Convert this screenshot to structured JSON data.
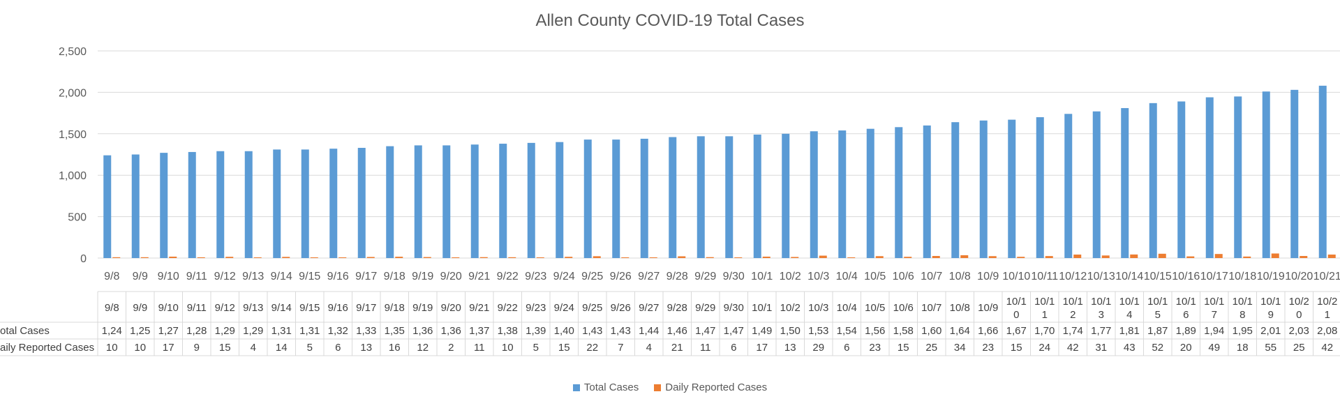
{
  "chart_data": {
    "type": "bar",
    "title": "Allen County COVID-19 Total Cases",
    "xlabel": "",
    "ylabel": "",
    "ylim": [
      0,
      2500
    ],
    "yticks": [
      "0",
      "500",
      "1,000",
      "1,500",
      "2,000",
      "2,500"
    ],
    "grid": true,
    "legend_position": "bottom",
    "data_table": true,
    "categories": [
      "9/8",
      "9/9",
      "9/10",
      "9/11",
      "9/12",
      "9/13",
      "9/14",
      "9/15",
      "9/16",
      "9/17",
      "9/18",
      "9/19",
      "9/20",
      "9/21",
      "9/22",
      "9/23",
      "9/24",
      "9/25",
      "9/26",
      "9/27",
      "9/28",
      "9/29",
      "9/30",
      "10/1",
      "10/2",
      "10/3",
      "10/4",
      "10/5",
      "10/6",
      "10/7",
      "10/8",
      "10/9",
      "10/10",
      "10/11",
      "10/12",
      "10/13",
      "10/14",
      "10/15",
      "10/16",
      "10/17",
      "10/18",
      "10/19",
      "10/20",
      "10/21"
    ],
    "table_header_labels": [
      "9/8",
      "9/9",
      "9/10",
      "9/11",
      "9/12",
      "9/13",
      "9/14",
      "9/15",
      "9/16",
      "9/17",
      "9/18",
      "9/19",
      "9/20",
      "9/21",
      "9/22",
      "9/23",
      "9/24",
      "9/25",
      "9/26",
      "9/27",
      "9/28",
      "9/29",
      "9/30",
      "10/1",
      "10/2",
      "10/3",
      "10/4",
      "10/5",
      "10/6",
      "10/7",
      "10/8",
      "10/9",
      "10/1|0",
      "10/1|1",
      "10/1|2",
      "10/1|3",
      "10/1|4",
      "10/1|5",
      "10/1|6",
      "10/1|7",
      "10/1|8",
      "10/1|9",
      "10/2|0",
      "10/2|1"
    ],
    "series": [
      {
        "name": "Total Cases",
        "table_label": "otal Cases",
        "color": "#5B9BD5",
        "values": [
          1240,
          1250,
          1270,
          1280,
          1290,
          1290,
          1310,
          1310,
          1320,
          1330,
          1350,
          1360,
          1360,
          1370,
          1380,
          1390,
          1400,
          1430,
          1430,
          1440,
          1460,
          1470,
          1470,
          1490,
          1500,
          1530,
          1540,
          1560,
          1580,
          1600,
          1640,
          1660,
          1670,
          1700,
          1740,
          1770,
          1810,
          1870,
          1890,
          1940,
          1950,
          2010,
          2030,
          2080
        ],
        "table_values": [
          "1,24",
          "1,25",
          "1,27",
          "1,28",
          "1,29",
          "1,29",
          "1,31",
          "1,31",
          "1,32",
          "1,33",
          "1,35",
          "1,36",
          "1,36",
          "1,37",
          "1,38",
          "1,39",
          "1,40",
          "1,43",
          "1,43",
          "1,44",
          "1,46",
          "1,47",
          "1,47",
          "1,49",
          "1,50",
          "1,53",
          "1,54",
          "1,56",
          "1,58",
          "1,60",
          "1,64",
          "1,66",
          "1,67",
          "1,70",
          "1,74",
          "1,77",
          "1,81",
          "1,87",
          "1,89",
          "1,94",
          "1,95",
          "2,01",
          "2,03",
          "2,08"
        ]
      },
      {
        "name": "Daily Reported Cases",
        "table_label": "aily Reported Cases",
        "color": "#ED7D31",
        "values": [
          10,
          10,
          17,
          9,
          15,
          4,
          14,
          5,
          6,
          13,
          16,
          12,
          2,
          11,
          10,
          5,
          15,
          22,
          7,
          4,
          21,
          11,
          6,
          17,
          13,
          29,
          6,
          23,
          15,
          25,
          34,
          23,
          15,
          24,
          42,
          31,
          43,
          52,
          20,
          49,
          18,
          55,
          25,
          42
        ],
        "table_values": [
          "10",
          "10",
          "17",
          "9",
          "15",
          "4",
          "14",
          "5",
          "6",
          "13",
          "16",
          "12",
          "2",
          "11",
          "10",
          "5",
          "15",
          "22",
          "7",
          "4",
          "21",
          "11",
          "6",
          "17",
          "13",
          "29",
          "6",
          "23",
          "15",
          "25",
          "34",
          "23",
          "15",
          "24",
          "42",
          "31",
          "43",
          "52",
          "20",
          "49",
          "18",
          "55",
          "25",
          "42"
        ]
      }
    ]
  }
}
